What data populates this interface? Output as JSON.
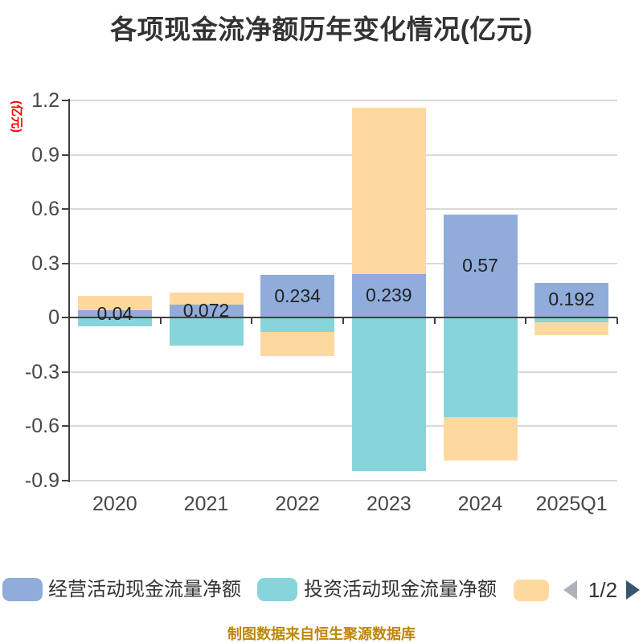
{
  "title": "各项现金流净额历年变化情况(亿元)",
  "y_axis_unit": "(亿元)",
  "footer": "制图数据来自恒生聚源数据库",
  "legend": {
    "items": [
      {
        "label": "经营活动现金流量净额",
        "color": "#8FACDB"
      },
      {
        "label": "投资活动现金流量净额",
        "color": "#88D4DB"
      },
      {
        "label": "",
        "color": "#FED99F"
      }
    ],
    "pagination": {
      "current": "1/2",
      "prev_icon": "left-triangle",
      "next_icon": "right-triangle",
      "prev_color": "#AEB3B9",
      "next_color": "#3A5570"
    }
  },
  "colors": {
    "series_blue": "#8FACDB",
    "series_teal": "#88D4DB",
    "series_orange": "#FED99F",
    "grid": "#D9D9D9",
    "axis": "#404040",
    "unit_label": "#FF0000",
    "footer_text": "#BE860B"
  },
  "chart_data": {
    "type": "bar",
    "stacked": true,
    "title": "各项现金流净额历年变化情况(亿元)",
    "ylabel": "(亿元)",
    "categories": [
      "2020",
      "2021",
      "2022",
      "2023",
      "2024",
      "2025Q1"
    ],
    "series": [
      {
        "name": "经营活动现金流量净额",
        "color": "#8FACDB",
        "values": [
          0.04,
          0.072,
          0.234,
          0.239,
          0.57,
          0.192
        ]
      },
      {
        "name": "投资活动现金流量净额",
        "color": "#88D4DB",
        "values": [
          -0.05,
          -0.156,
          -0.082,
          -0.85,
          -0.55,
          -0.025
        ]
      },
      {
        "name": "",
        "color": "#FED99F",
        "values": [
          0.08,
          0.064,
          -0.13,
          0.92,
          -0.24,
          -0.072
        ]
      }
    ],
    "bar_labels": [
      "0.04",
      "0.072",
      "0.234",
      "0.239",
      "0.57",
      "0.192"
    ],
    "ylim": [
      -0.9,
      1.2
    ],
    "ytick_step": 0.3,
    "yticks": [
      "1.2",
      "0.9",
      "0.6",
      "0.3",
      "0",
      "-0.3",
      "-0.6",
      "-0.9"
    ],
    "grid": true,
    "legend_position": "bottom"
  }
}
